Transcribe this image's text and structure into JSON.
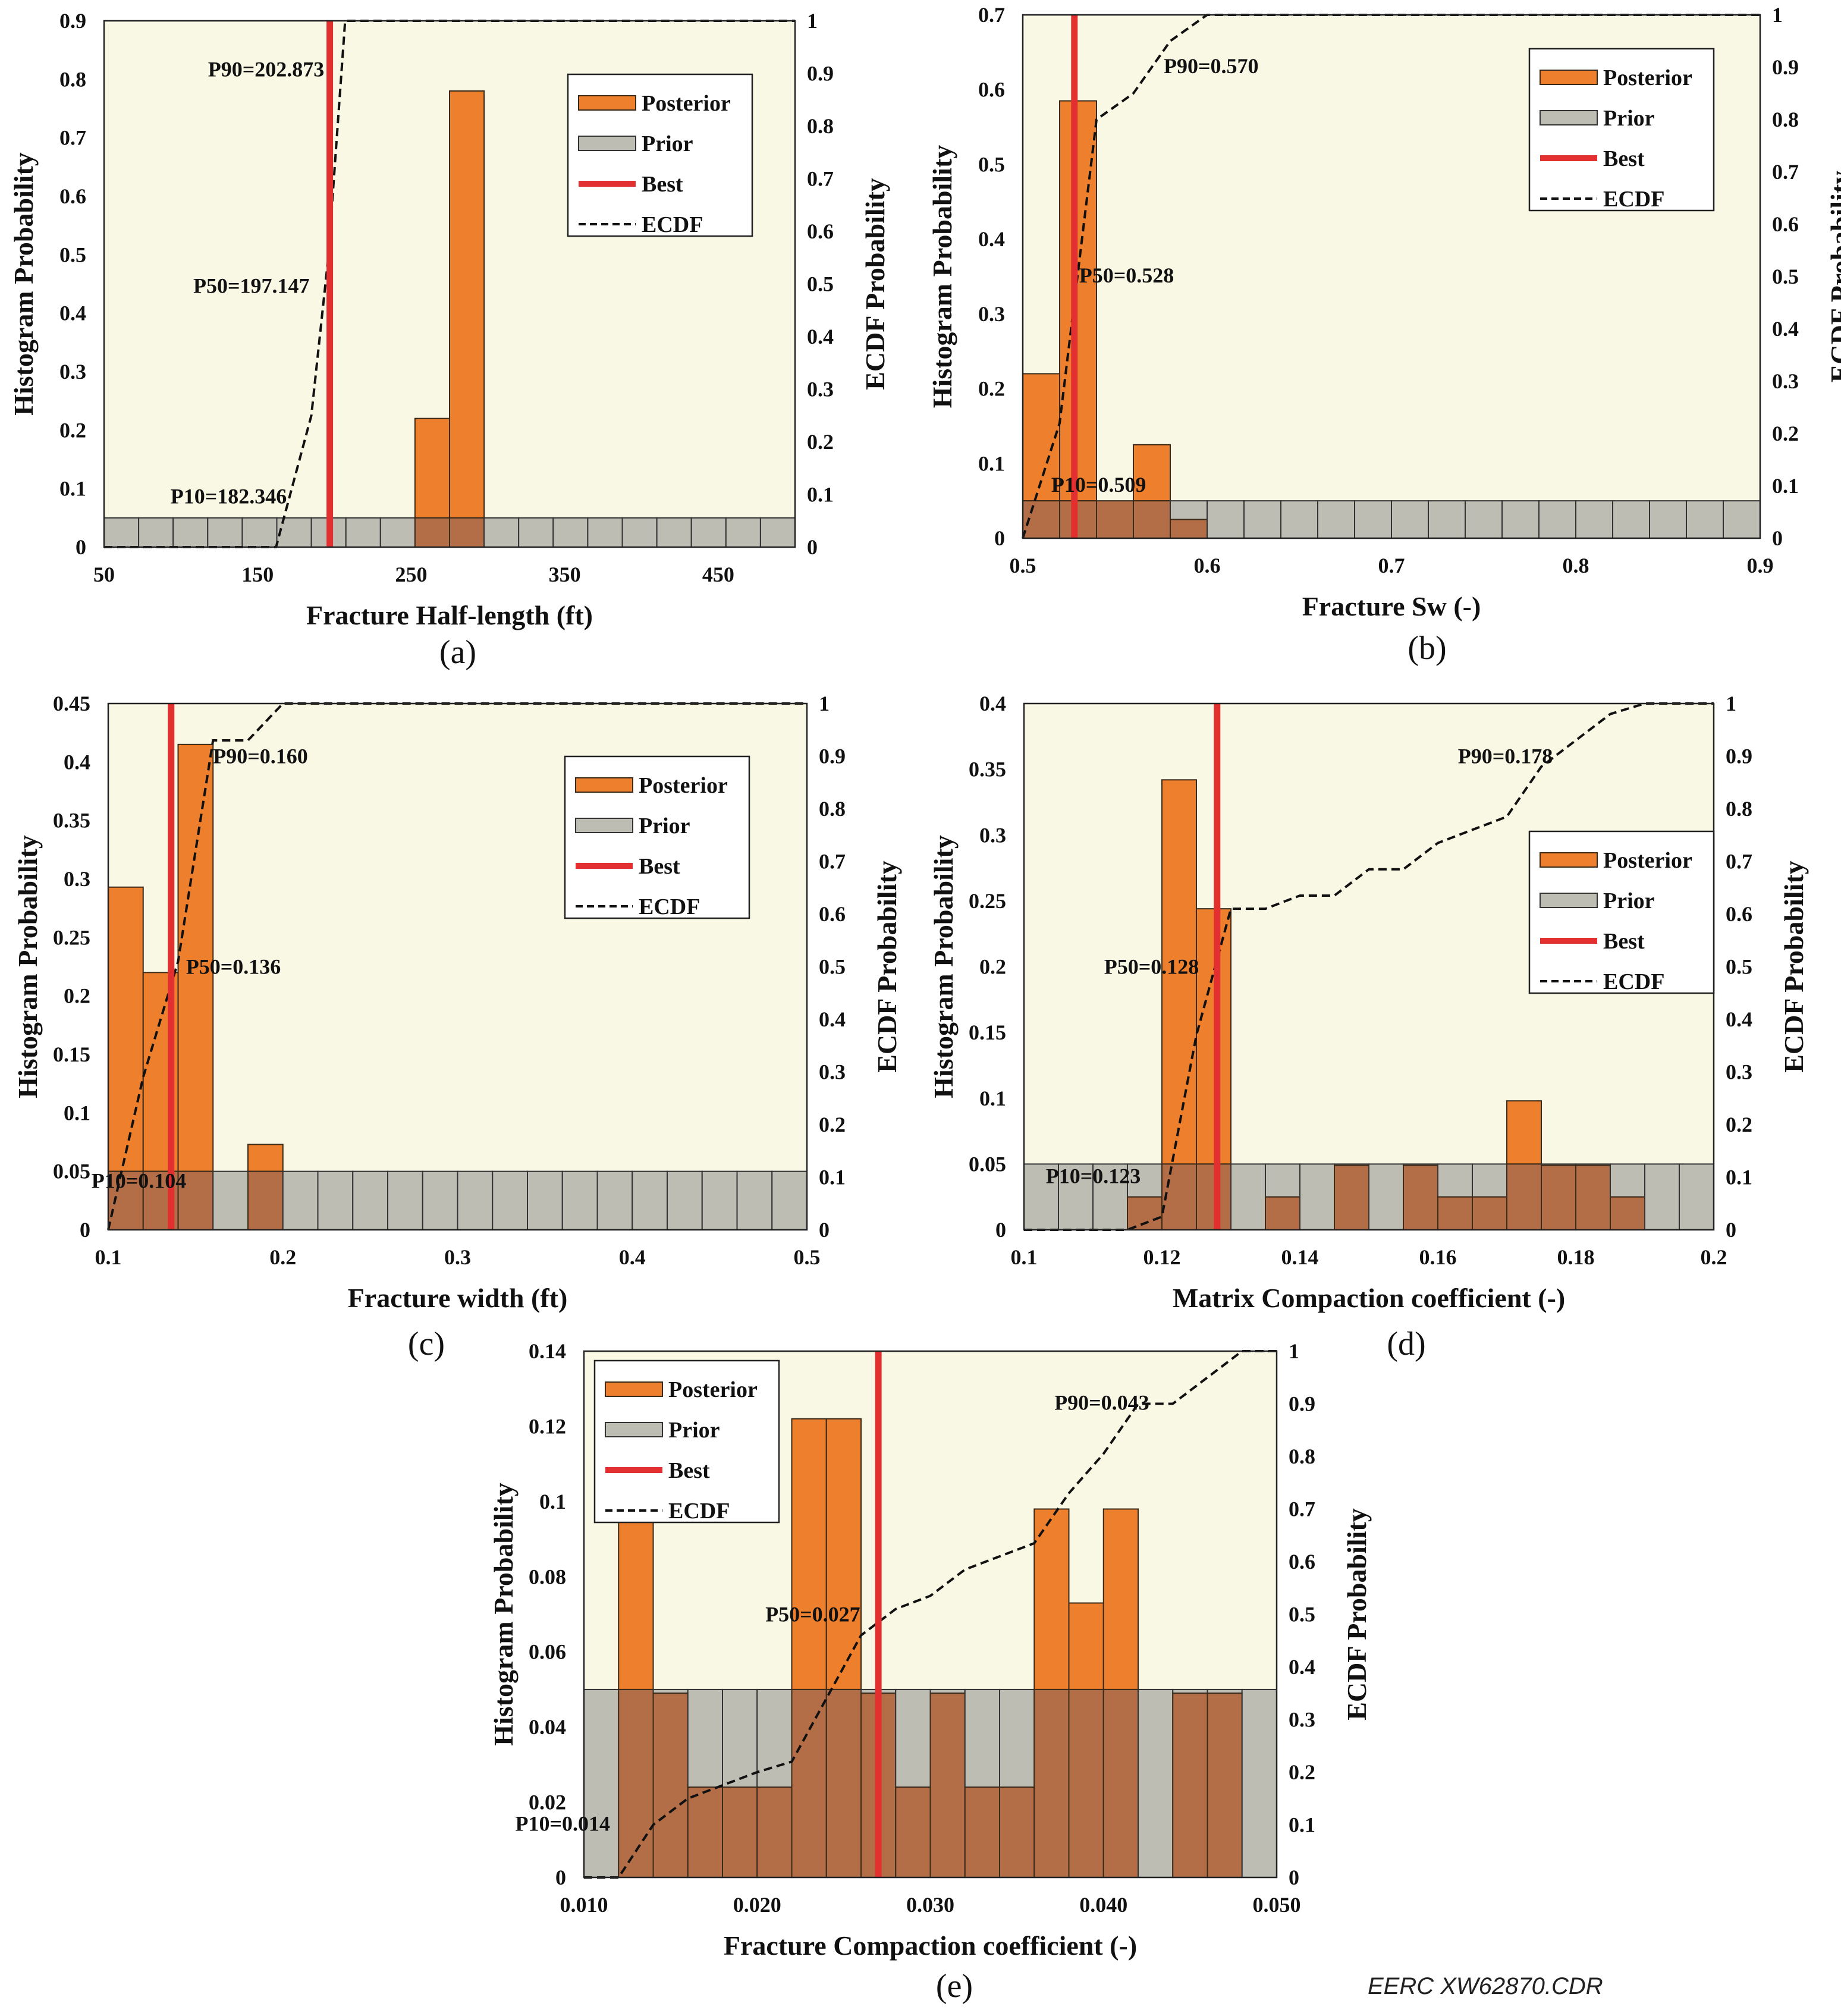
{
  "credit": "EERC XW62870.CDR",
  "legend": {
    "posterior": "Posterior",
    "prior": "Prior",
    "best": "Best",
    "ecdf": "ECDF"
  },
  "colors": {
    "plot_bg": "#f8f8e4",
    "posterior": "#ee7f2d",
    "prior": "#bdbdb4",
    "overlap": "#b46e47",
    "best": "#e23030",
    "ecdf": "#111111"
  },
  "chart_data": [
    {
      "id": "a",
      "type": "bar",
      "caption": "(a)",
      "xlabel": "Fracture Half-length (ft)",
      "ylabel": "Histogram Probability",
      "y2label": "ECDF Probability",
      "xlim": [
        50,
        500
      ],
      "ylim": [
        0,
        0.9
      ],
      "y2lim": [
        0,
        1
      ],
      "xticks": [
        "50",
        "150",
        "250",
        "350",
        "450"
      ],
      "xtick_values": [
        50,
        150,
        250,
        350,
        450
      ],
      "yticks": [
        "0",
        "0.1",
        "0.2",
        "0.3",
        "0.4",
        "0.5",
        "0.6",
        "0.7",
        "0.8",
        "0.9"
      ],
      "y2ticks": [
        "0",
        "0.1",
        "0.2",
        "0.3",
        "0.4",
        "0.5",
        "0.6",
        "0.7",
        "0.8",
        "0.9",
        "1"
      ],
      "bin_edges": [
        50,
        500
      ],
      "bin_count": 20,
      "prior": 0.05,
      "posterior": [
        0,
        0,
        0,
        0,
        0,
        0,
        0,
        0,
        0,
        0.22,
        0.78,
        0,
        0,
        0,
        0,
        0,
        0,
        0,
        0,
        0
      ],
      "best": 197,
      "ecdf": [
        [
          50,
          0
        ],
        [
          162,
          0
        ],
        [
          185,
          0.25
        ],
        [
          196,
          0.55
        ],
        [
          207,
          1
        ],
        [
          500,
          1
        ]
      ],
      "percentiles": [
        {
          "label": "P90=202.873",
          "x": 202.873,
          "y": 0.9
        },
        {
          "label": "P50=197.147",
          "x": 197.147,
          "y": 0.5
        },
        {
          "label": "P10=182.346",
          "x": 182.346,
          "y": 0.1
        }
      ]
    },
    {
      "id": "b",
      "type": "bar",
      "caption": "(b)",
      "xlabel": "Fracture Sw (-)",
      "ylabel": "Histogram Probability",
      "y2label": "ECDF Probability",
      "xlim": [
        0.5,
        0.9
      ],
      "ylim": [
        0,
        0.7
      ],
      "y2lim": [
        0,
        1
      ],
      "xticks": [
        "0.5",
        "0.6",
        "0.7",
        "0.8",
        "0.9"
      ],
      "xtick_values": [
        0.5,
        0.6,
        0.7,
        0.8,
        0.9
      ],
      "yticks": [
        "0",
        "0.1",
        "0.2",
        "0.3",
        "0.4",
        "0.5",
        "0.6",
        "0.7"
      ],
      "y2ticks": [
        "0",
        "0.1",
        "0.2",
        "0.3",
        "0.4",
        "0.5",
        "0.6",
        "0.7",
        "0.8",
        "0.9",
        "1"
      ],
      "bin_edges": [
        0.5,
        0.9
      ],
      "bin_count": 20,
      "prior": 0.05,
      "posterior": [
        0.22,
        0.585,
        0.05,
        0.125,
        0.025,
        0,
        0,
        0,
        0,
        0,
        0,
        0,
        0,
        0,
        0,
        0,
        0,
        0,
        0,
        0
      ],
      "best": 0.528,
      "ecdf": [
        [
          0.5,
          0
        ],
        [
          0.52,
          0.22
        ],
        [
          0.54,
          0.8
        ],
        [
          0.56,
          0.85
        ],
        [
          0.58,
          0.95
        ],
        [
          0.6,
          1
        ],
        [
          0.9,
          1
        ]
      ],
      "percentiles": [
        {
          "label": "P90=0.570",
          "x": 0.57,
          "y": 0.9
        },
        {
          "label": "P50=0.528",
          "x": 0.528,
          "y": 0.5
        },
        {
          "label": "P10=0.509",
          "x": 0.509,
          "y": 0.1
        }
      ]
    },
    {
      "id": "c",
      "type": "bar",
      "caption": "(c)",
      "xlabel": "Fracture width (ft)",
      "ylabel": "Histogram Probability",
      "y2label": "ECDF Probability",
      "xlim": [
        0.1,
        0.5
      ],
      "ylim": [
        0,
        0.45
      ],
      "y2lim": [
        0,
        1
      ],
      "xticks": [
        "0.1",
        "0.2",
        "0.3",
        "0.4",
        "0.5"
      ],
      "xtick_values": [
        0.1,
        0.2,
        0.3,
        0.4,
        0.5
      ],
      "yticks": [
        "0",
        "0.05",
        "0.1",
        "0.15",
        "0.2",
        "0.25",
        "0.3",
        "0.35",
        "0.4",
        "0.45"
      ],
      "y2ticks": [
        "0",
        "0.1",
        "0.2",
        "0.3",
        "0.4",
        "0.5",
        "0.6",
        "0.7",
        "0.8",
        "0.9",
        "1"
      ],
      "bin_edges": [
        0.1,
        0.5
      ],
      "bin_count": 20,
      "prior": 0.05,
      "posterior": [
        0.293,
        0.22,
        0.415,
        0,
        0.073,
        0,
        0,
        0,
        0,
        0,
        0,
        0,
        0,
        0,
        0,
        0,
        0,
        0,
        0,
        0
      ],
      "best": 0.136,
      "ecdf": [
        [
          0.1,
          0
        ],
        [
          0.12,
          0.29
        ],
        [
          0.14,
          0.51
        ],
        [
          0.16,
          0.93
        ],
        [
          0.18,
          0.93
        ],
        [
          0.2,
          1
        ],
        [
          0.5,
          1
        ]
      ],
      "percentiles": [
        {
          "label": "P90=0.160",
          "x": 0.16,
          "y": 0.9
        },
        {
          "label": "P50=0.136",
          "x": 0.136,
          "y": 0.5
        },
        {
          "label": "P10=0.104",
          "x": 0.104,
          "y": 0.1
        }
      ]
    },
    {
      "id": "d",
      "type": "bar",
      "caption": "(d)",
      "xlabel": "Matrix Compaction coefficient (-)",
      "ylabel": "Histogram Probability",
      "y2label": "ECDF Probability",
      "xlim": [
        0.1,
        0.2
      ],
      "ylim": [
        0,
        0.4
      ],
      "y2lim": [
        0,
        1
      ],
      "xticks": [
        "0.1",
        "0.12",
        "0.14",
        "0.16",
        "0.18",
        "0.2"
      ],
      "xtick_values": [
        0.1,
        0.12,
        0.14,
        0.16,
        0.18,
        0.2
      ],
      "yticks": [
        "0",
        "0.05",
        "0.1",
        "0.15",
        "0.2",
        "0.25",
        "0.3",
        "0.35",
        "0.4"
      ],
      "y2ticks": [
        "0",
        "0.1",
        "0.2",
        "0.3",
        "0.4",
        "0.5",
        "0.6",
        "0.7",
        "0.8",
        "0.9",
        "1"
      ],
      "bin_edges": [
        0.1,
        0.2
      ],
      "bin_count": 20,
      "prior": 0.05,
      "posterior": [
        0,
        0,
        0,
        0.025,
        0.342,
        0.244,
        0,
        0.025,
        0,
        0.049,
        0,
        0.049,
        0.025,
        0.025,
        0.098,
        0.049,
        0.049,
        0.025,
        0,
        0
      ],
      "best": 0.128,
      "ecdf": [
        [
          0.1,
          0
        ],
        [
          0.115,
          0
        ],
        [
          0.12,
          0.025
        ],
        [
          0.125,
          0.37
        ],
        [
          0.13,
          0.61
        ],
        [
          0.135,
          0.61
        ],
        [
          0.14,
          0.635
        ],
        [
          0.145,
          0.635
        ],
        [
          0.15,
          0.685
        ],
        [
          0.155,
          0.685
        ],
        [
          0.16,
          0.735
        ],
        [
          0.165,
          0.76
        ],
        [
          0.17,
          0.785
        ],
        [
          0.175,
          0.88
        ],
        [
          0.18,
          0.93
        ],
        [
          0.185,
          0.98
        ],
        [
          0.19,
          1
        ],
        [
          0.2,
          1
        ]
      ],
      "percentiles": [
        {
          "label": "P90=0.178",
          "x": 0.178,
          "y": 0.9
        },
        {
          "label": "P50=0.128",
          "x": 0.128,
          "y": 0.5
        },
        {
          "label": "P10=0.123",
          "x": 0.123,
          "y": 0.1
        }
      ]
    },
    {
      "id": "e",
      "type": "bar",
      "caption": "(e)",
      "xlabel": "Fracture Compaction coefficient (-)",
      "ylabel": "Histogram Probability",
      "y2label": "ECDF Probability",
      "xlim": [
        0.01,
        0.05
      ],
      "ylim": [
        0,
        0.14
      ],
      "y2lim": [
        0,
        1
      ],
      "xticks": [
        "0.010",
        "0.020",
        "0.030",
        "0.040",
        "0.050"
      ],
      "xtick_values": [
        0.01,
        0.02,
        0.03,
        0.04,
        0.05
      ],
      "yticks": [
        "0",
        "0.02",
        "0.04",
        "0.06",
        "0.08",
        "0.1",
        "0.12",
        "0.14"
      ],
      "y2ticks": [
        "0",
        "0.1",
        "0.2",
        "0.3",
        "0.4",
        "0.5",
        "0.6",
        "0.7",
        "0.8",
        "0.9",
        "1"
      ],
      "bin_edges": [
        0.01,
        0.05
      ],
      "bin_count": 20,
      "prior": 0.05,
      "posterior": [
        0,
        0.098,
        0.049,
        0.024,
        0.024,
        0.024,
        0.122,
        0.122,
        0.049,
        0.024,
        0.049,
        0.024,
        0.024,
        0.098,
        0.073,
        0.098,
        0,
        0.049,
        0.049,
        0
      ],
      "best": 0.027,
      "ecdf": [
        [
          0.01,
          0
        ],
        [
          0.012,
          0
        ],
        [
          0.014,
          0.1
        ],
        [
          0.016,
          0.15
        ],
        [
          0.018,
          0.175
        ],
        [
          0.02,
          0.2
        ],
        [
          0.022,
          0.22
        ],
        [
          0.024,
          0.34
        ],
        [
          0.026,
          0.46
        ],
        [
          0.028,
          0.51
        ],
        [
          0.03,
          0.535
        ],
        [
          0.032,
          0.585
        ],
        [
          0.034,
          0.61
        ],
        [
          0.036,
          0.635
        ],
        [
          0.038,
          0.73
        ],
        [
          0.04,
          0.805
        ],
        [
          0.042,
          0.9
        ],
        [
          0.044,
          0.9
        ],
        [
          0.046,
          0.95
        ],
        [
          0.048,
          1
        ],
        [
          0.05,
          1
        ]
      ],
      "percentiles": [
        {
          "label": "P90=0.043",
          "x": 0.043,
          "y": 0.9
        },
        {
          "label": "P50=0.027",
          "x": 0.027,
          "y": 0.5
        },
        {
          "label": "P10=0.014",
          "x": 0.014,
          "y": 0.1
        }
      ]
    }
  ]
}
